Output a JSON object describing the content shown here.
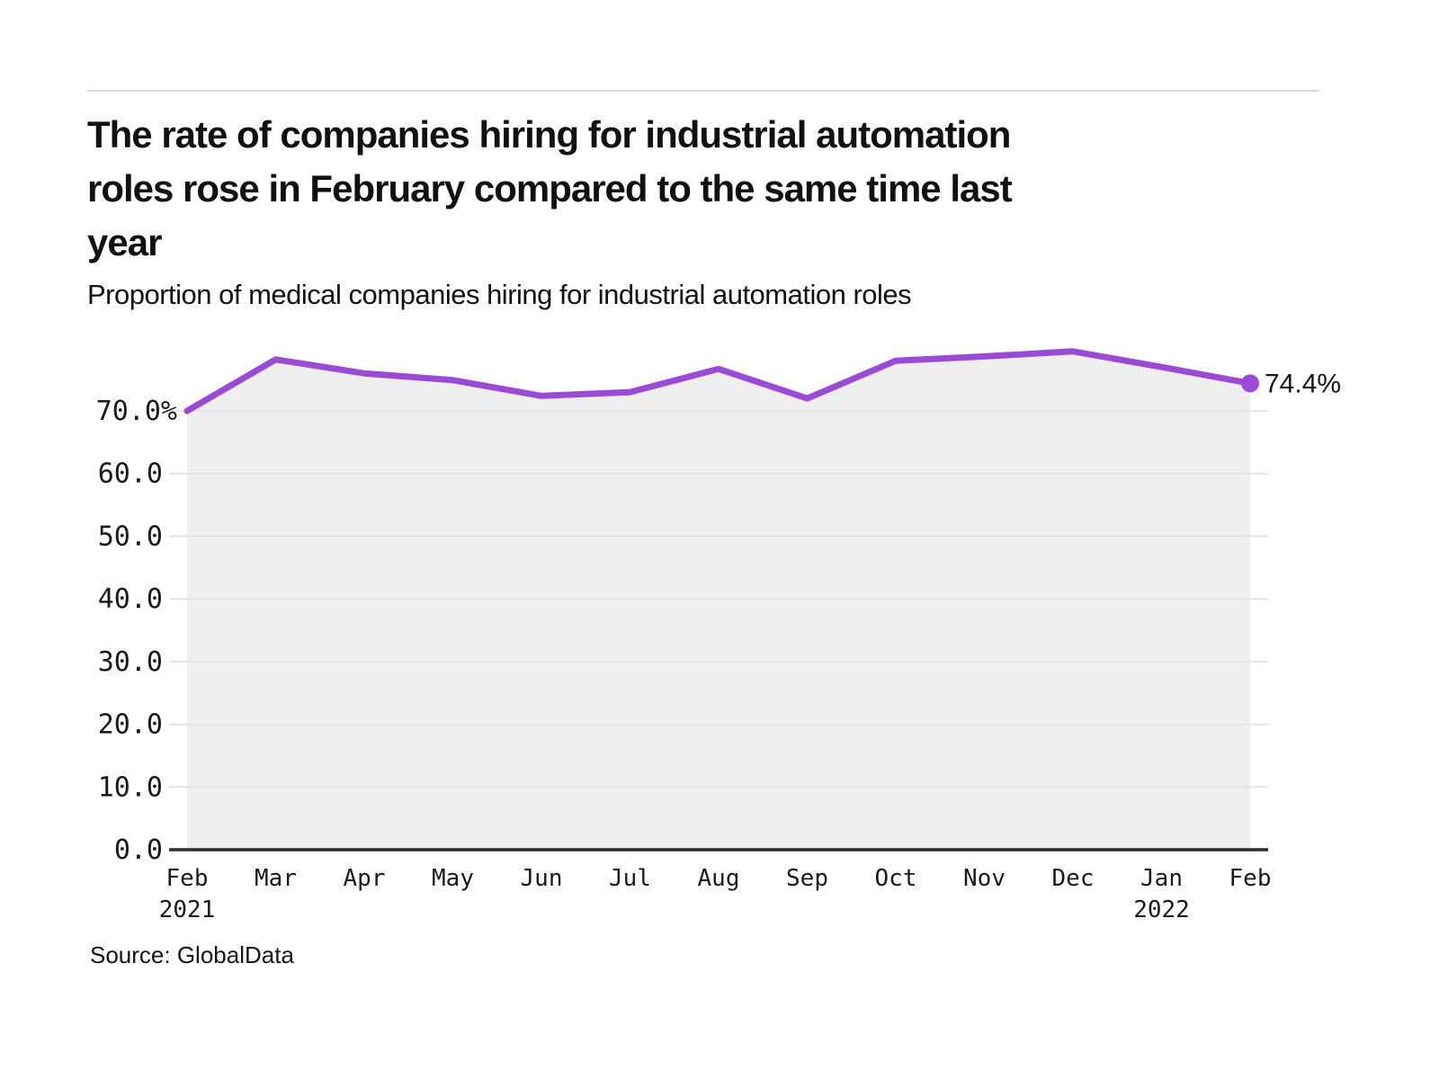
{
  "header": {
    "title": "The rate of companies hiring for industrial automation\nroles rose in February compared to the same time last\nyear",
    "subtitle": "Proportion of medical companies hiring for industrial automation roles"
  },
  "footer": {
    "source": "Source: GlobalData"
  },
  "chart_data": {
    "type": "area",
    "title": "The rate of companies hiring for industrial automation roles rose in February compared to the same time last year",
    "subtitle": "Proportion of medical companies hiring for industrial automation roles",
    "categories": [
      "Feb 2021",
      "Mar",
      "Apr",
      "May",
      "Jun",
      "Jul",
      "Aug",
      "Sep",
      "Oct",
      "Nov",
      "Dec",
      "Jan 2022",
      "Feb 2022"
    ],
    "x_tick_labels": [
      [
        "Feb",
        "2021"
      ],
      [
        "Mar"
      ],
      [
        "Apr"
      ],
      [
        "May"
      ],
      [
        "Jun"
      ],
      [
        "Jul"
      ],
      [
        "Aug"
      ],
      [
        "Sep"
      ],
      [
        "Oct"
      ],
      [
        "Nov"
      ],
      [
        "Dec"
      ],
      [
        "Jan",
        "2022"
      ],
      [
        "Feb"
      ]
    ],
    "values": [
      70.0,
      78.2,
      76.0,
      74.9,
      72.4,
      73.0,
      76.7,
      72.0,
      78.0,
      78.7,
      79.5,
      77.0,
      74.4
    ],
    "end_label": "74.4%",
    "y_ticks": [
      {
        "value": 0,
        "label": "0.0"
      },
      {
        "value": 10,
        "label": "10.0"
      },
      {
        "value": 20,
        "label": "20.0"
      },
      {
        "value": 30,
        "label": "30.0"
      },
      {
        "value": 40,
        "label": "40.0"
      },
      {
        "value": 50,
        "label": "50.0"
      },
      {
        "value": 60,
        "label": "60.0"
      },
      {
        "value": 70,
        "label": "70.0%"
      }
    ],
    "ylim": [
      0,
      80
    ],
    "xlabel": "",
    "ylabel": "",
    "grid": true,
    "legend": "none",
    "colors": {
      "line": "#9b4ad5",
      "dot": "#9b4ad5",
      "area": "#efefef",
      "grid": "#e4e4e4",
      "axis": "#2b2b2b",
      "tick_text": "#1a1a1a",
      "end_label_text": "#161616"
    }
  }
}
